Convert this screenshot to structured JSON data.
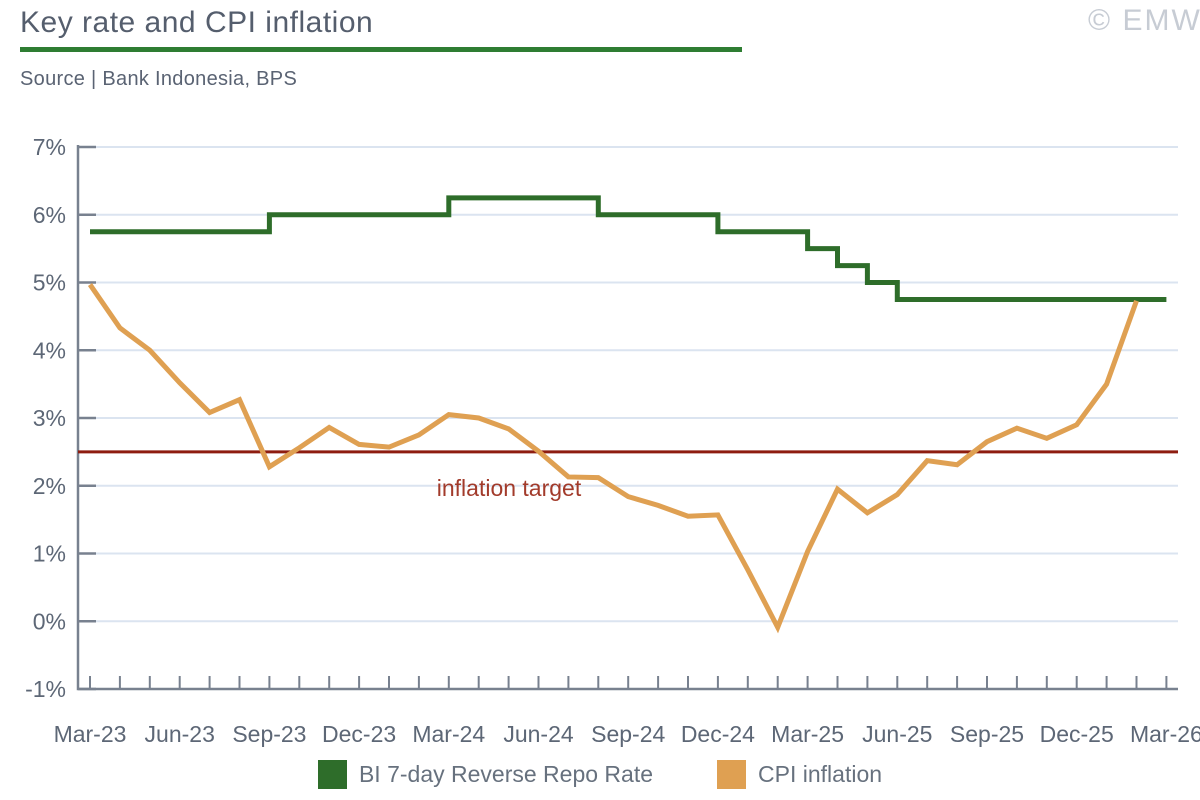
{
  "header": {
    "title": "Key rate and CPI inflation",
    "source": "Source | Bank Indonesia, BPS",
    "watermark": "© EMW"
  },
  "colors": {
    "repo_rate_green": "#2e6d2a",
    "cpi_orange": "#dfa052",
    "target_line_red": "#8e1d10",
    "target_label_red": "#a23b2b",
    "accent_rule_green": "#2e7d32",
    "gridline": "#dbe4f0",
    "axis": "#78818f",
    "axis_label": "#5d6776"
  },
  "chart_data": {
    "type": "line",
    "title": "Key rate and CPI inflation",
    "xlabel": "",
    "ylabel": "",
    "ylim": [
      -1,
      7
    ],
    "grid": "horizontal",
    "legend_position": "bottom",
    "y_tick_labels": [
      "7%",
      "6%",
      "5%",
      "4%",
      "3%",
      "2%",
      "1%",
      "0%",
      "-1%"
    ],
    "x_labels_every": 3,
    "months": [
      "Mar-23",
      "Apr-23",
      "May-23",
      "Jun-23",
      "Jul-23",
      "Aug-23",
      "Sep-23",
      "Oct-23",
      "Nov-23",
      "Dec-23",
      "Jan-24",
      "Feb-24",
      "Mar-24",
      "Apr-24",
      "May-24",
      "Jun-24",
      "Jul-24",
      "Aug-24",
      "Sep-24",
      "Oct-24",
      "Nov-24",
      "Dec-24",
      "Jan-25",
      "Feb-25",
      "Mar-25",
      "Apr-25",
      "May-25",
      "Jun-25",
      "Jul-25",
      "Aug-25",
      "Sep-25",
      "Oct-25",
      "Nov-25",
      "Dec-25",
      "Jan-26",
      "Feb-26",
      "Mar-26"
    ],
    "series": [
      {
        "name": "BI 7-day Reverse Repo Rate",
        "style": "step",
        "color": "#2e6d2a",
        "values": [
          5.75,
          5.75,
          5.75,
          5.75,
          5.75,
          5.75,
          5.75,
          6.0,
          6.0,
          6.0,
          6.0,
          6.0,
          6.0,
          6.25,
          6.25,
          6.25,
          6.25,
          6.25,
          6.0,
          6.0,
          6.0,
          6.0,
          5.75,
          5.75,
          5.75,
          5.5,
          5.25,
          5.0,
          4.75,
          4.75,
          4.75,
          4.75,
          4.75,
          4.75,
          4.75,
          4.75,
          4.75
        ]
      },
      {
        "name": "CPI inflation",
        "style": "line",
        "color": "#dfa052",
        "values": [
          4.97,
          4.33,
          4.0,
          3.52,
          3.08,
          3.27,
          2.28,
          2.56,
          2.86,
          2.61,
          2.57,
          2.75,
          3.05,
          3.0,
          2.84,
          2.51,
          2.13,
          2.12,
          1.84,
          1.71,
          1.55,
          1.57,
          0.76,
          -0.09,
          1.03,
          1.95,
          1.6,
          1.87,
          2.37,
          2.31,
          2.65,
          2.85,
          2.7,
          2.9,
          3.5,
          4.73,
          null
        ]
      }
    ],
    "target_line": {
      "label": "inflation target",
      "value": 2.5,
      "color": "#8e1d10",
      "label_color": "#a23b2b"
    }
  }
}
